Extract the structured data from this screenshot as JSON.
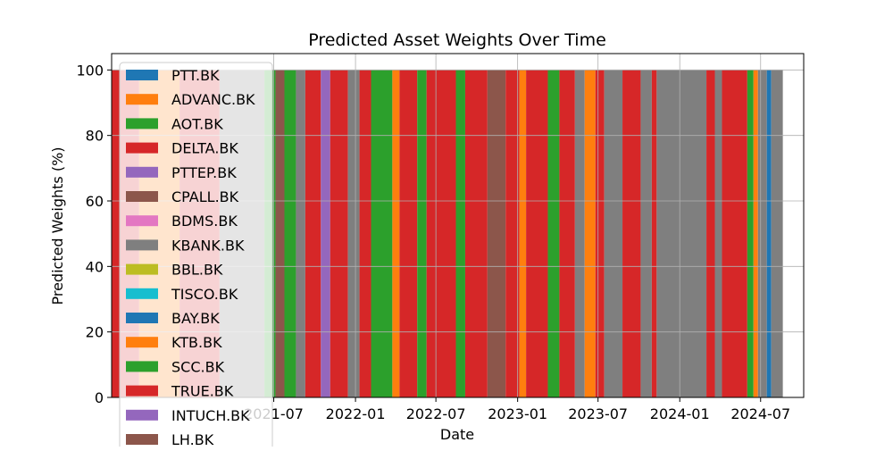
{
  "chart_data": {
    "type": "area",
    "title": "Predicted Asset Weights Over Time",
    "xlabel": "Date",
    "ylabel": "Predicted Weights (%)",
    "xlim": [
      "2020-07-01",
      "2024-10-06"
    ],
    "ylim": [
      0,
      105
    ],
    "x_ticks": [
      "2021-07",
      "2022-01",
      "2022-07",
      "2023-01",
      "2023-07",
      "2024-01",
      "2024-07"
    ],
    "x_tick_labels": [
      "2021-07",
      "2022-01",
      "2022-07",
      "2023-01",
      "2023-07",
      "2024-01",
      "2024-07"
    ],
    "y_ticks": [
      0,
      20,
      40,
      60,
      80,
      100
    ],
    "y_tick_labels": [
      "0",
      "20",
      "40",
      "60",
      "80",
      "100"
    ],
    "grid": true,
    "stacked": true,
    "legend": {
      "position": "upper-left",
      "visible_entries": 16
    },
    "series": [
      {
        "name": "PTT.BK",
        "color": "#1f77b4"
      },
      {
        "name": "ADVANC.BK",
        "color": "#ff7f0e"
      },
      {
        "name": "AOT.BK",
        "color": "#2ca02c"
      },
      {
        "name": "DELTA.BK",
        "color": "#d62728"
      },
      {
        "name": "PTTEP.BK",
        "color": "#9467bd"
      },
      {
        "name": "CPALL.BK",
        "color": "#8c564b"
      },
      {
        "name": "BDMS.BK",
        "color": "#e377c2"
      },
      {
        "name": "KBANK.BK",
        "color": "#7f7f7f"
      },
      {
        "name": "BBL.BK",
        "color": "#bcbd22"
      },
      {
        "name": "TISCO.BK",
        "color": "#17becf"
      },
      {
        "name": "BAY.BK",
        "color": "#1f77b4"
      },
      {
        "name": "KTB.BK",
        "color": "#ff7f0e"
      },
      {
        "name": "SCC.BK",
        "color": "#2ca02c"
      },
      {
        "name": "TRUE.BK",
        "color": "#d62728"
      },
      {
        "name": "INTUCH.BK",
        "color": "#9467bd"
      },
      {
        "name": "LH.BK",
        "color": "#8c564b"
      }
    ],
    "dominant_periods": [
      {
        "start": "2020-07-01",
        "end": "2020-09-01",
        "asset": "DELTA.BK"
      },
      {
        "start": "2020-09-01",
        "end": "2020-12-01",
        "asset": "ADVANC.BK"
      },
      {
        "start": "2020-12-01",
        "end": "2021-03-01",
        "asset": "DELTA.BK"
      },
      {
        "start": "2021-03-01",
        "end": "2021-06-10",
        "asset": "KBANK.BK"
      },
      {
        "start": "2021-06-10",
        "end": "2021-07-05",
        "asset": "AOT.BK"
      },
      {
        "start": "2021-07-05",
        "end": "2021-07-25",
        "asset": "CPALL.BK"
      },
      {
        "start": "2021-07-25",
        "end": "2021-08-20",
        "asset": "AOT.BK"
      },
      {
        "start": "2021-08-20",
        "end": "2021-09-10",
        "asset": "KBANK.BK"
      },
      {
        "start": "2021-09-10",
        "end": "2021-10-15",
        "asset": "DELTA.BK"
      },
      {
        "start": "2021-10-15",
        "end": "2021-11-05",
        "asset": "PTTEP.BK"
      },
      {
        "start": "2021-11-05",
        "end": "2021-12-15",
        "asset": "DELTA.BK"
      },
      {
        "start": "2021-12-15",
        "end": "2022-01-10",
        "asset": "KBANK.BK"
      },
      {
        "start": "2022-01-10",
        "end": "2022-02-05",
        "asset": "DELTA.BK"
      },
      {
        "start": "2022-02-05",
        "end": "2022-03-25",
        "asset": "AOT.BK"
      },
      {
        "start": "2022-03-25",
        "end": "2022-04-10",
        "asset": "KTB.BK"
      },
      {
        "start": "2022-04-10",
        "end": "2022-05-20",
        "asset": "DELTA.BK"
      },
      {
        "start": "2022-05-20",
        "end": "2022-06-10",
        "asset": "AOT.BK"
      },
      {
        "start": "2022-06-10",
        "end": "2022-08-15",
        "asset": "DELTA.BK"
      },
      {
        "start": "2022-08-15",
        "end": "2022-09-05",
        "asset": "AOT.BK"
      },
      {
        "start": "2022-09-05",
        "end": "2022-10-25",
        "asset": "DELTA.BK"
      },
      {
        "start": "2022-10-25",
        "end": "2022-12-05",
        "asset": "CPALL.BK"
      },
      {
        "start": "2022-12-05",
        "end": "2023-01-05",
        "asset": "DELTA.BK"
      },
      {
        "start": "2023-01-05",
        "end": "2023-01-20",
        "asset": "KTB.BK"
      },
      {
        "start": "2023-01-20",
        "end": "2023-03-10",
        "asset": "DELTA.BK"
      },
      {
        "start": "2023-03-10",
        "end": "2023-04-05",
        "asset": "AOT.BK"
      },
      {
        "start": "2023-04-05",
        "end": "2023-05-10",
        "asset": "DELTA.BK"
      },
      {
        "start": "2023-05-10",
        "end": "2023-06-01",
        "asset": "KBANK.BK"
      },
      {
        "start": "2023-06-01",
        "end": "2023-06-25",
        "asset": "KTB.BK"
      },
      {
        "start": "2023-06-25",
        "end": "2023-07-15",
        "asset": "DELTA.BK"
      },
      {
        "start": "2023-07-15",
        "end": "2023-08-25",
        "asset": "KBANK.BK"
      },
      {
        "start": "2023-08-25",
        "end": "2023-10-05",
        "asset": "DELTA.BK"
      },
      {
        "start": "2023-10-05",
        "end": "2023-10-30",
        "asset": "KBANK.BK"
      },
      {
        "start": "2023-10-30",
        "end": "2023-11-10",
        "asset": "DELTA.BK"
      },
      {
        "start": "2023-11-10",
        "end": "2024-03-01",
        "asset": "KBANK.BK"
      },
      {
        "start": "2024-03-01",
        "end": "2024-03-20",
        "asset": "DELTA.BK"
      },
      {
        "start": "2024-03-20",
        "end": "2024-04-05",
        "asset": "KBANK.BK"
      },
      {
        "start": "2024-04-05",
        "end": "2024-06-01",
        "asset": "DELTA.BK"
      },
      {
        "start": "2024-06-01",
        "end": "2024-06-15",
        "asset": "AOT.BK"
      },
      {
        "start": "2024-06-15",
        "end": "2024-06-25",
        "asset": "KTB.BK"
      },
      {
        "start": "2024-06-25",
        "end": "2024-07-15",
        "asset": "KBANK.BK"
      },
      {
        "start": "2024-07-15",
        "end": "2024-07-25",
        "asset": "BAY.BK"
      },
      {
        "start": "2024-07-25",
        "end": "2024-08-20",
        "asset": "KBANK.BK"
      }
    ]
  }
}
